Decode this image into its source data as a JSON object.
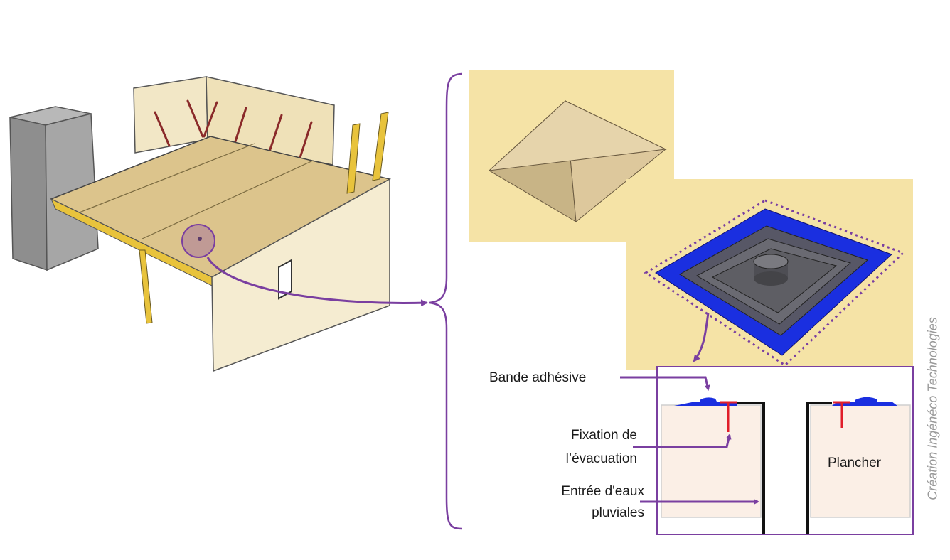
{
  "labels": {
    "adhesive_tape": "Bande adhésive",
    "fixing_line1": "Fixation de",
    "fixing_line2": "l’évacuation",
    "inlet_line1": "Entrée d'eaux",
    "inlet_line2": "pluviales",
    "floor": "Plancher"
  },
  "credit": "Création Ingénéco Technologies",
  "colors": {
    "highlight": "#7a3fa0",
    "tape": "#1a2fe0",
    "fixing": "#e01e2a",
    "panel_bg": "#f5e3a6",
    "floor_fill": "#fbefe6",
    "wall": "#f3e9cc",
    "deck": "#dcc48c",
    "post": "#e8c33c",
    "column": "#9a9a9a"
  },
  "icons": [
    "3d-roof-model",
    "pyramid-cover",
    "drain-flashing-3d",
    "drain-section"
  ]
}
